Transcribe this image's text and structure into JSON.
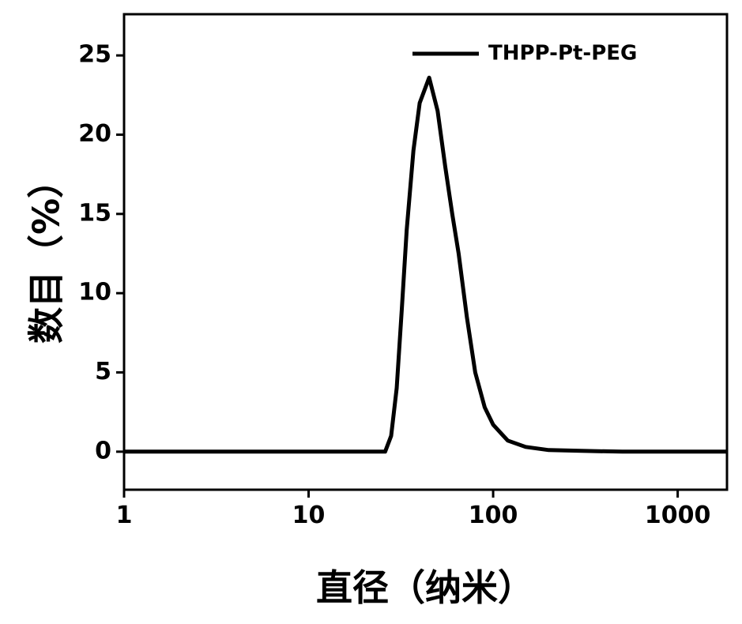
{
  "chart_data": {
    "type": "line",
    "x_label": "直径（纳米）",
    "y_label": "数目（%）",
    "x": [
      1,
      10,
      20,
      26,
      28,
      30,
      32,
      34,
      37,
      40,
      45,
      50,
      55,
      60,
      65,
      72,
      80,
      90,
      100,
      120,
      150,
      200,
      300,
      500,
      1000,
      1850
    ],
    "series": [
      {
        "name": "THPP-Pt-PEG",
        "color": "#000000",
        "values": [
          0,
          0,
          0,
          0,
          1,
          4,
          9,
          14,
          19,
          22,
          23.6,
          21.5,
          18,
          15,
          12.5,
          8.5,
          5,
          2.8,
          1.7,
          0.7,
          0.3,
          0.1,
          0.05,
          0,
          0,
          0
        ]
      }
    ],
    "xlim": [
      1,
      1850
    ],
    "xticks": [
      1,
      10,
      100,
      1000
    ],
    "x_log": true,
    "ylim": [
      -2.4,
      27.6
    ],
    "yticks": [
      0,
      5,
      10,
      15,
      20,
      25
    ],
    "legend": "upper right"
  }
}
